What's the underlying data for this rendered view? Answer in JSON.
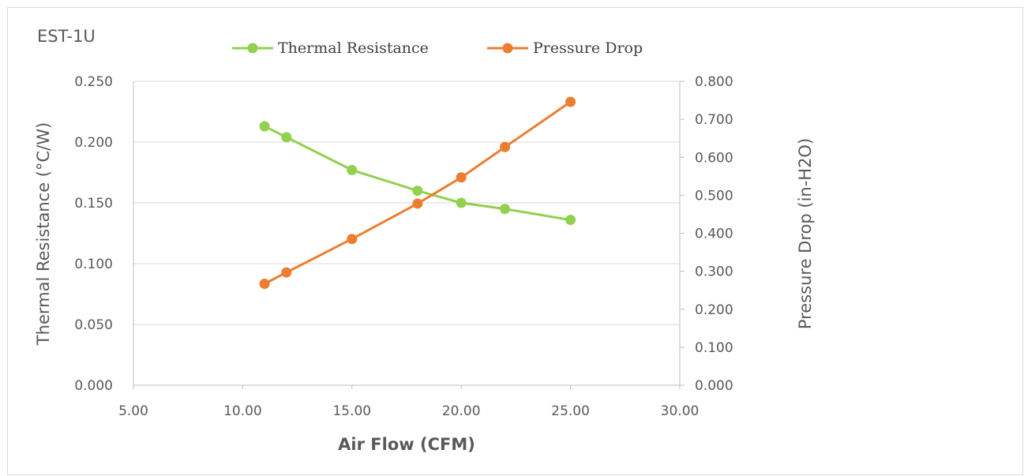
{
  "chart_data": {
    "type": "line",
    "title": "EST-1U",
    "xlabel": "Air Flow (CFM)",
    "ylabel": "Thermal Resistance (°C/W)",
    "y2label": "Pressure Drop (in-H2O)",
    "xlim": [
      5.0,
      30.0
    ],
    "ylim": [
      0.0,
      0.25
    ],
    "y2lim": [
      0.0,
      0.8
    ],
    "x_ticks": [
      "5.00",
      "10.00",
      "15.00",
      "20.00",
      "25.00",
      "30.00"
    ],
    "y_ticks": [
      "0.000",
      "0.050",
      "0.100",
      "0.150",
      "0.200",
      "0.250"
    ],
    "y2_ticks": [
      "0.000",
      "0.100",
      "0.200",
      "0.300",
      "0.400",
      "0.500",
      "0.600",
      "0.700",
      "0.800"
    ],
    "grid": true,
    "legend_position": "top",
    "series": [
      {
        "name": "Thermal Resistance",
        "axis": "left",
        "color": "#92d050",
        "x": [
          11,
          12,
          15,
          18,
          20,
          22,
          25
        ],
        "y": [
          0.213,
          0.204,
          0.177,
          0.16,
          0.15,
          0.145,
          0.136
        ]
      },
      {
        "name": "Pressure Drop",
        "axis": "right",
        "color": "#ed7d31",
        "x": [
          11,
          12,
          15,
          18,
          20,
          22,
          25
        ],
        "y": [
          0.267,
          0.297,
          0.385,
          0.478,
          0.547,
          0.627,
          0.746
        ]
      }
    ]
  }
}
